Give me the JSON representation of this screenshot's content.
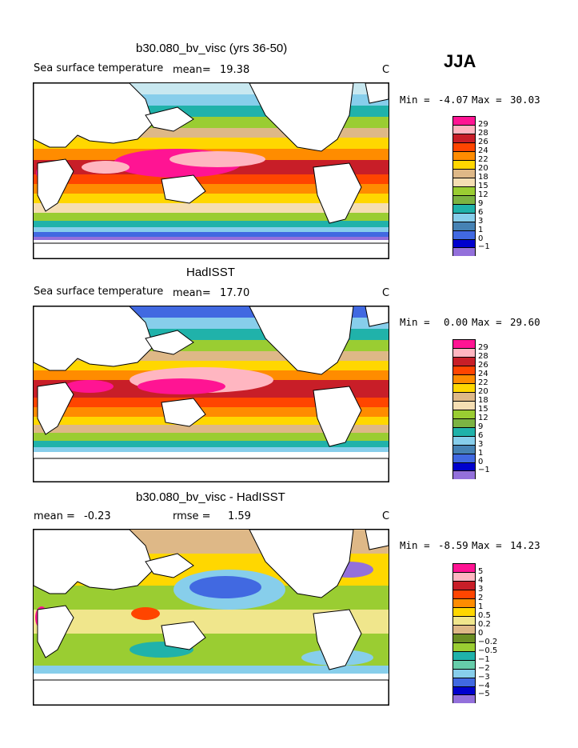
{
  "season": "JJA",
  "panels": [
    {
      "title": "b30.080_bv_visc (yrs 36-50)",
      "left_label": "Sea surface temperature",
      "stat_label": "mean=",
      "stat_value": "19.38",
      "units": "C",
      "min_label": "Min =",
      "min_value": "-4.07",
      "max_label": "Max =",
      "max_value": "30.03"
    },
    {
      "title": "HadISST",
      "left_label": "Sea surface temperature",
      "stat_label": "mean=",
      "stat_value": "17.70",
      "units": "C",
      "min_label": "Min =",
      "min_value": "0.00",
      "max_label": "Max =",
      "max_value": "29.60"
    },
    {
      "title": "b30.080_bv_visc - HadISST",
      "left_label": "mean =",
      "left_value": "-0.23",
      "stat_label": "rmse =",
      "stat_value": "1.59",
      "units": "C",
      "min_label": "Min =",
      "min_value": "-8.59",
      "max_label": "Max =",
      "max_value": "14.23"
    }
  ],
  "colorbar_sst": {
    "labels": [
      "29",
      "28",
      "26",
      "24",
      "22",
      "20",
      "18",
      "15",
      "12",
      "9",
      "6",
      "3",
      "1",
      "0",
      "−1"
    ],
    "colors": [
      "#ff1493",
      "#ffb6c1",
      "#c81e28",
      "#ff4500",
      "#ff8c00",
      "#ffd700",
      "#deb887",
      "#f5deb3",
      "#9acd32",
      "#7cb342",
      "#20b2aa",
      "#87ceeb",
      "#4682b4",
      "#4169e1",
      "#0000cd",
      "#9370db"
    ]
  },
  "colorbar_diff": {
    "labels": [
      "5",
      "4",
      "3",
      "2",
      "1",
      "0.5",
      "0.2",
      "0",
      "−0.2",
      "−0.5",
      "−1",
      "−2",
      "−3",
      "−4",
      "−5"
    ],
    "colors": [
      "#ff1493",
      "#ffb6c1",
      "#c81e28",
      "#ff4500",
      "#ff8c00",
      "#ffd700",
      "#f0e68c",
      "#deb887",
      "#6b8e23",
      "#9acd32",
      "#20b2aa",
      "#66cdaa",
      "#87ceeb",
      "#4169e1",
      "#0000cd",
      "#9370db"
    ]
  },
  "chart_data": [
    {
      "type": "heatmap",
      "title": "b30.080_bv_visc (yrs 36-50)",
      "variable": "Sea surface temperature",
      "units": "C",
      "season": "JJA",
      "mean": 19.38,
      "min": -4.07,
      "max": 30.03,
      "contour_levels": [
        -1,
        0,
        1,
        3,
        6,
        9,
        12,
        15,
        18,
        20,
        22,
        24,
        26,
        28,
        29
      ]
    },
    {
      "type": "heatmap",
      "title": "HadISST",
      "variable": "Sea surface temperature",
      "units": "C",
      "season": "JJA",
      "mean": 17.7,
      "min": 0.0,
      "max": 29.6,
      "contour_levels": [
        -1,
        0,
        1,
        3,
        6,
        9,
        12,
        15,
        18,
        20,
        22,
        24,
        26,
        28,
        29
      ]
    },
    {
      "type": "heatmap",
      "title": "b30.080_bv_visc - HadISST",
      "units": "C",
      "season": "JJA",
      "mean": -0.23,
      "rmse": 1.59,
      "min": -8.59,
      "max": 14.23,
      "contour_levels": [
        -5,
        -4,
        -3,
        -2,
        -1,
        -0.5,
        -0.2,
        0,
        0.2,
        0.5,
        1,
        2,
        3,
        4,
        5
      ]
    }
  ]
}
